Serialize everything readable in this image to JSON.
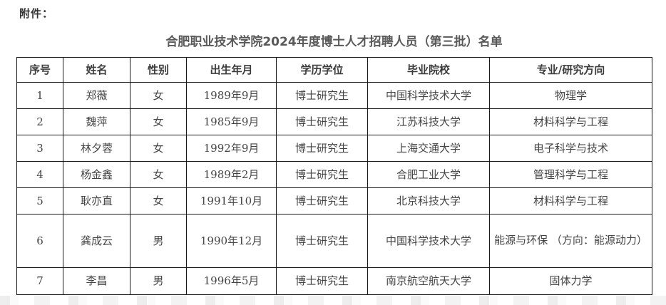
{
  "page": {
    "attachment_label": "附件：",
    "table_title": "合肥职业技术学院2024年度博士人才招聘人员（第三批）名单"
  },
  "table": {
    "columns": [
      "序号",
      "姓名",
      "性别",
      "出生年月",
      "学历学位",
      "毕业院校",
      "专业/研究方向"
    ],
    "rows": [
      [
        "1",
        "郑薇",
        "女",
        "1989年9月",
        "博士研究生",
        "中国科学技术大学",
        "物理学"
      ],
      [
        "2",
        "魏萍",
        "女",
        "1985年9月",
        "博士研究生",
        "江苏科技大学",
        "材料科学与工程"
      ],
      [
        "3",
        "林夕蓉",
        "女",
        "1992年9月",
        "博士研究生",
        "上海交通大学",
        "电子科学与技术"
      ],
      [
        "4",
        "杨金鑫",
        "女",
        "1989年2月",
        "博士研究生",
        "合肥工业大学",
        "管理科学与工程"
      ],
      [
        "5",
        "耿亦直",
        "女",
        "1991年10月",
        "博士研究生",
        "北京科技大学",
        "材料科学与工程"
      ],
      [
        "6",
        "龚成云",
        "男",
        "1990年12月",
        "博士研究生",
        "中国科学技术大学",
        "能源与环保 （方向：能源动力）"
      ],
      [
        "7",
        "李昌",
        "男",
        "1996年5月",
        "博士研究生",
        "南京航空航天大学",
        "固体力学"
      ]
    ]
  },
  "colors": {
    "table_border": "#1a1a1a",
    "body_text": "#444444",
    "header_text": "#3c3c3c",
    "title_text": "#595959",
    "attachment_text": "#333333",
    "page_background": "#ffffff"
  }
}
